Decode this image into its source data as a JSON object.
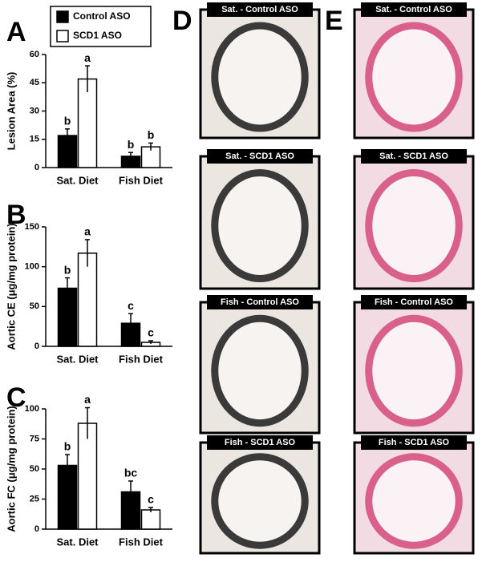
{
  "chart_data": [
    {
      "type": "bar",
      "panel": "A",
      "ylabel": "Lesion Area (%)",
      "categories": [
        "Sat. Diet",
        "Fish Diet"
      ],
      "series": [
        {
          "name": "Control ASO",
          "color": "#000000",
          "values": [
            17,
            6
          ],
          "errors": [
            3.5,
            2
          ],
          "labels": [
            "b",
            "b"
          ]
        },
        {
          "name": "SCD1 ASO",
          "color": "#ffffff",
          "values": [
            47,
            11
          ],
          "errors": [
            7,
            2
          ],
          "labels": [
            "a",
            "b"
          ]
        }
      ],
      "ylim": [
        0,
        60
      ],
      "yticks": [
        0,
        15,
        30,
        45,
        60
      ],
      "legend": true
    },
    {
      "type": "bar",
      "panel": "B",
      "ylabel": "Aortic CE (μg/mg protein)",
      "categories": [
        "Sat. Diet",
        "Fish Diet"
      ],
      "series": [
        {
          "color": "#000000",
          "values": [
            73,
            29
          ],
          "errors": [
            13,
            12
          ],
          "labels": [
            "b",
            "c"
          ]
        },
        {
          "color": "#ffffff",
          "values": [
            117,
            5
          ],
          "errors": [
            17,
            2
          ],
          "labels": [
            "a",
            "c"
          ]
        }
      ],
      "ylim": [
        0,
        150
      ],
      "yticks": [
        0,
        50,
        100,
        150
      ],
      "legend": false
    },
    {
      "type": "bar",
      "panel": "C",
      "ylabel": "Aortic FC (μg/mg protein)",
      "categories": [
        "Sat. Diet",
        "Fish Diet"
      ],
      "series": [
        {
          "color": "#000000",
          "values": [
            53,
            31
          ],
          "errors": [
            9,
            9
          ],
          "labels": [
            "b",
            "bc"
          ]
        },
        {
          "color": "#ffffff",
          "values": [
            88,
            16
          ],
          "errors": [
            13,
            2
          ],
          "labels": [
            "a",
            "c"
          ]
        }
      ],
      "ylim": [
        0,
        100
      ],
      "yticks": [
        0,
        25,
        50,
        75,
        100
      ],
      "legend": false
    }
  ],
  "image_panels": [
    {
      "panel": "D",
      "images": [
        "Sat. - Control ASO",
        "Sat. -  SCD1 ASO",
        "Fish - Control ASO",
        "Fish - SCD1 ASO"
      ]
    },
    {
      "panel": "E",
      "images": [
        "Sat. - Control ASO",
        "Sat. -  SCD1 ASO",
        "Fish - Control ASO",
        "Fish - SCD1 ASO"
      ]
    }
  ]
}
